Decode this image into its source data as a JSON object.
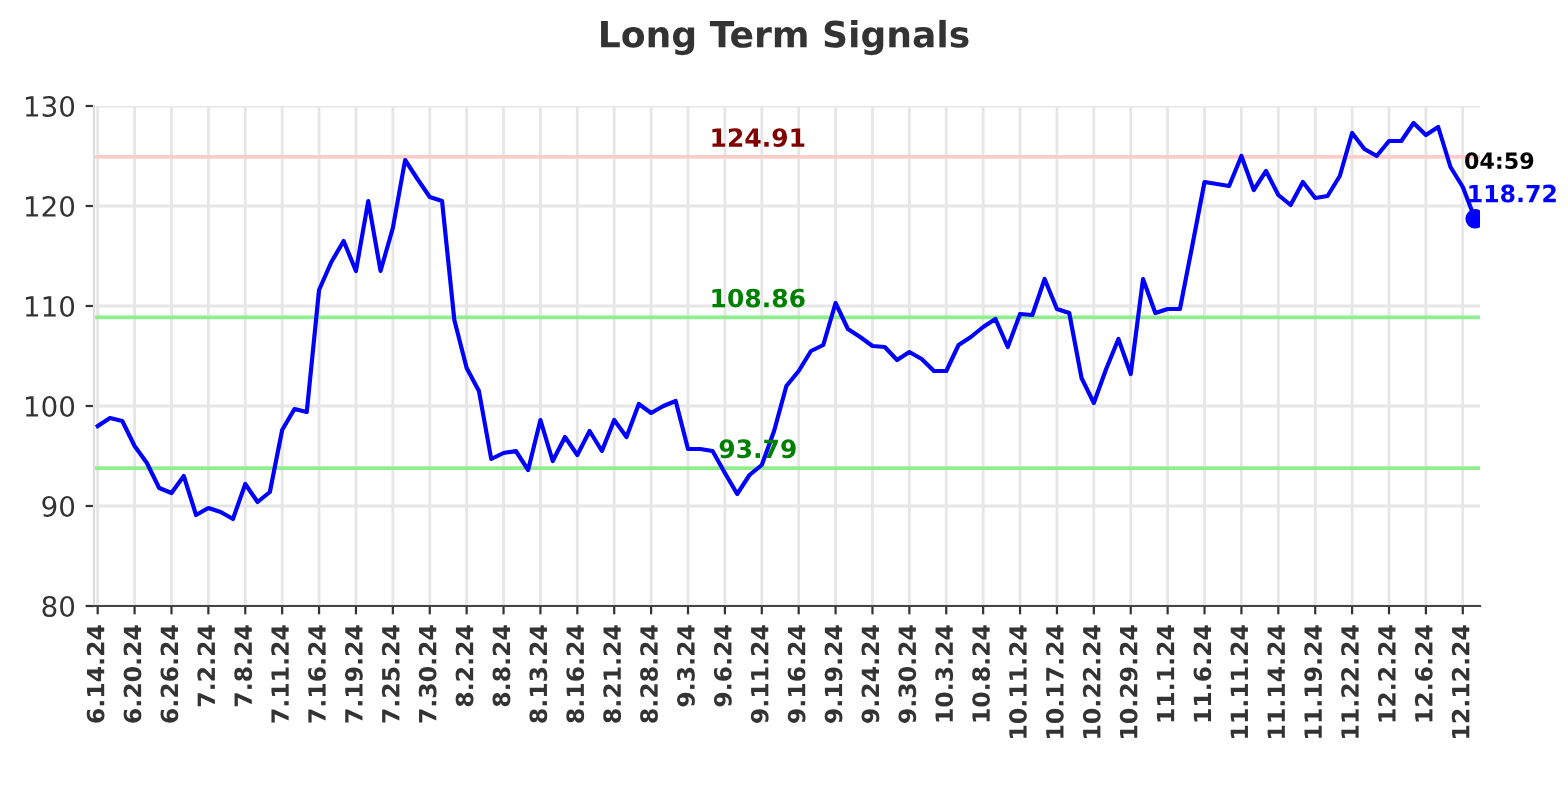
{
  "chart_data": {
    "type": "line",
    "title": "Long Term Signals",
    "categories": [
      "6.14.24",
      null,
      null,
      "6.20.24",
      null,
      null,
      "6.26.24",
      null,
      null,
      "7.2.24",
      null,
      null,
      "7.8.24",
      null,
      null,
      "7.11.24",
      null,
      null,
      "7.16.24",
      null,
      null,
      "7.19.24",
      null,
      null,
      "7.25.24",
      null,
      null,
      "7.30.24",
      null,
      null,
      "8.2.24",
      null,
      null,
      "8.8.24",
      null,
      null,
      "8.13.24",
      null,
      null,
      "8.16.24",
      null,
      null,
      "8.21.24",
      null,
      null,
      "8.28.24",
      null,
      null,
      "9.3.24",
      null,
      null,
      "9.6.24",
      null,
      null,
      "9.11.24",
      null,
      null,
      "9.16.24",
      null,
      null,
      "9.19.24",
      null,
      null,
      "9.24.24",
      null,
      null,
      "9.30.24",
      null,
      null,
      "10.3.24",
      null,
      null,
      "10.8.24",
      null,
      null,
      "10.11.24",
      null,
      null,
      "10.17.24",
      null,
      null,
      "10.22.24",
      null,
      null,
      "10.29.24",
      null,
      null,
      "11.1.24",
      null,
      null,
      "11.6.24",
      null,
      null,
      "11.11.24",
      null,
      null,
      "11.14.24",
      null,
      null,
      "11.19.24",
      null,
      null,
      "11.22.24",
      null,
      null,
      "12.2.24",
      null,
      null,
      "12.6.24",
      null,
      null,
      "12.12.24",
      null
    ],
    "series": [
      {
        "color": "#0000ff",
        "values": [
          98.0,
          98.8,
          98.5,
          96.0,
          94.3,
          91.8,
          91.3,
          93.0,
          89.1,
          89.8,
          89.4,
          88.7,
          92.2,
          90.4,
          91.4,
          97.6,
          99.7,
          99.4,
          111.6,
          114.4,
          116.5,
          113.5,
          120.5,
          113.5,
          117.8,
          124.6,
          122.7,
          120.9,
          120.5,
          108.6,
          103.8,
          101.5,
          94.7,
          95.3,
          95.5,
          93.6,
          98.6,
          94.5,
          96.9,
          95.1,
          97.5,
          95.5,
          98.6,
          96.9,
          100.2,
          99.3,
          100.0,
          100.5,
          95.7,
          95.7,
          95.5,
          93.3,
          91.2,
          93.1,
          94.1,
          97.5,
          102.0,
          103.5,
          105.5,
          106.1,
          110.3,
          107.7,
          106.9,
          106.0,
          105.9,
          104.6,
          105.4,
          104.7,
          103.5,
          103.5,
          106.1,
          106.9,
          107.9,
          108.7,
          105.9,
          109.2,
          109.1,
          112.7,
          109.7,
          109.3,
          102.8,
          100.3,
          103.7,
          106.7,
          103.2,
          112.7,
          109.3,
          109.7,
          109.7,
          116.0,
          122.4,
          122.2,
          122.0,
          125.0,
          121.6,
          123.5,
          121.1,
          120.1,
          122.4,
          120.8,
          121.0,
          123.0,
          127.3,
          125.7,
          125.0,
          126.5,
          126.5,
          128.3,
          127.1,
          127.9,
          123.9,
          121.9,
          118.7
        ]
      },
      {
        "type": "scatter",
        "color": "#0000ff",
        "marker": "circle",
        "values": [
          null,
          null,
          null,
          null,
          null,
          null,
          null,
          null,
          null,
          null,
          null,
          null,
          null,
          null,
          null,
          null,
          null,
          null,
          null,
          null,
          null,
          null,
          null,
          null,
          null,
          null,
          null,
          null,
          null,
          null,
          null,
          null,
          null,
          null,
          null,
          null,
          null,
          null,
          null,
          null,
          null,
          null,
          null,
          null,
          null,
          null,
          null,
          null,
          null,
          null,
          null,
          null,
          null,
          null,
          null,
          null,
          null,
          null,
          null,
          null,
          null,
          null,
          null,
          null,
          null,
          null,
          null,
          null,
          null,
          null,
          null,
          null,
          null,
          null,
          null,
          null,
          null,
          null,
          null,
          null,
          null,
          null,
          null,
          null,
          null,
          null,
          null,
          null,
          null,
          null,
          null,
          null,
          null,
          null,
          null,
          null,
          null,
          null,
          null,
          null,
          null,
          null,
          null,
          null,
          null,
          null,
          null,
          null,
          null,
          null,
          null,
          null,
          118.72
        ],
        "value_labels": [
          null,
          null,
          null,
          null,
          null,
          null,
          null,
          null,
          null,
          null,
          null,
          null,
          null,
          null,
          null,
          null,
          null,
          null,
          null,
          null,
          null,
          null,
          null,
          null,
          null,
          null,
          null,
          null,
          null,
          null,
          null,
          null,
          null,
          null,
          null,
          null,
          null,
          null,
          null,
          null,
          null,
          null,
          null,
          null,
          null,
          null,
          null,
          null,
          null,
          null,
          null,
          null,
          null,
          null,
          null,
          null,
          null,
          null,
          null,
          null,
          null,
          null,
          null,
          null,
          null,
          null,
          null,
          null,
          null,
          null,
          null,
          null,
          null,
          null,
          null,
          null,
          null,
          null,
          null,
          null,
          null,
          null,
          null,
          null,
          null,
          null,
          null,
          null,
          null,
          null,
          null,
          null,
          null,
          null,
          null,
          null,
          null,
          null,
          null,
          null,
          null,
          null,
          null,
          null,
          null,
          null,
          null,
          null,
          null,
          null,
          null,
          null,
          "118.72"
        ]
      }
    ],
    "ref_lines": [
      {
        "axis": "y",
        "value": 124.91,
        "label": "124.91",
        "color": "#ffcccc"
      },
      {
        "axis": "y",
        "value": 108.86,
        "label": "108.86",
        "color": "#90ee90"
      },
      {
        "axis": "y",
        "value": 93.79,
        "label": "93.79",
        "color": "#90ee90"
      }
    ],
    "annotations": [
      "04:59"
    ],
    "ylim": [
      80,
      130
    ],
    "yticks": [
      80,
      90,
      100,
      110,
      120,
      130
    ],
    "grid": true,
    "line_style": "solid"
  }
}
